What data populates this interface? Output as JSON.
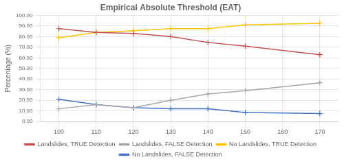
{
  "chart_data": {
    "type": "line",
    "title": "Empirical Absolute Threshold (EAT)",
    "ylabel": "Percentage (%)",
    "x": [
      100,
      110,
      120,
      130,
      140,
      150,
      170
    ],
    "series": [
      {
        "name": "Landslides, TRUE Detection",
        "color": "#c0504d",
        "values": [
          87.5,
          84.0,
          83.0,
          80.0,
          74.5,
          71.0,
          63.0
        ]
      },
      {
        "name": "Landslides, FALSE Detection",
        "color": "#a5a5a5",
        "values": [
          12.0,
          16.0,
          13.0,
          20.0,
          26.0,
          29.0,
          36.5
        ]
      },
      {
        "name": "No Landslides, TRUE Detection",
        "color": "#ffc000",
        "values": [
          79.0,
          84.0,
          85.5,
          87.5,
          87.5,
          91.0,
          92.5
        ]
      },
      {
        "name": "No Landslides, FALSE Detection",
        "color": "#4472c4",
        "values": [
          21.0,
          16.0,
          13.0,
          12.0,
          12.0,
          8.5,
          7.5
        ]
      }
    ],
    "marker": "plus",
    "xlim": [
      95,
      175
    ],
    "xticks": [
      100,
      110,
      120,
      130,
      140,
      150,
      160,
      170
    ],
    "ylim": [
      0,
      100
    ],
    "yticks": [
      {
        "value": 0,
        "label": "0.00"
      },
      {
        "value": 10,
        "label": "10.00"
      },
      {
        "value": 20,
        "label": "20.00"
      },
      {
        "value": 30,
        "label": "30.00"
      },
      {
        "value": 40,
        "label": "40.00"
      },
      {
        "value": 50,
        "label": "50.00"
      },
      {
        "value": 60,
        "label": "60.00"
      },
      {
        "value": 70,
        "label": "70.00"
      },
      {
        "value": 80,
        "label": "80.00"
      },
      {
        "value": 90,
        "label": "90.00"
      },
      {
        "value": 100,
        "label": "100.00"
      }
    ],
    "grid": true,
    "legend": "bottom"
  }
}
